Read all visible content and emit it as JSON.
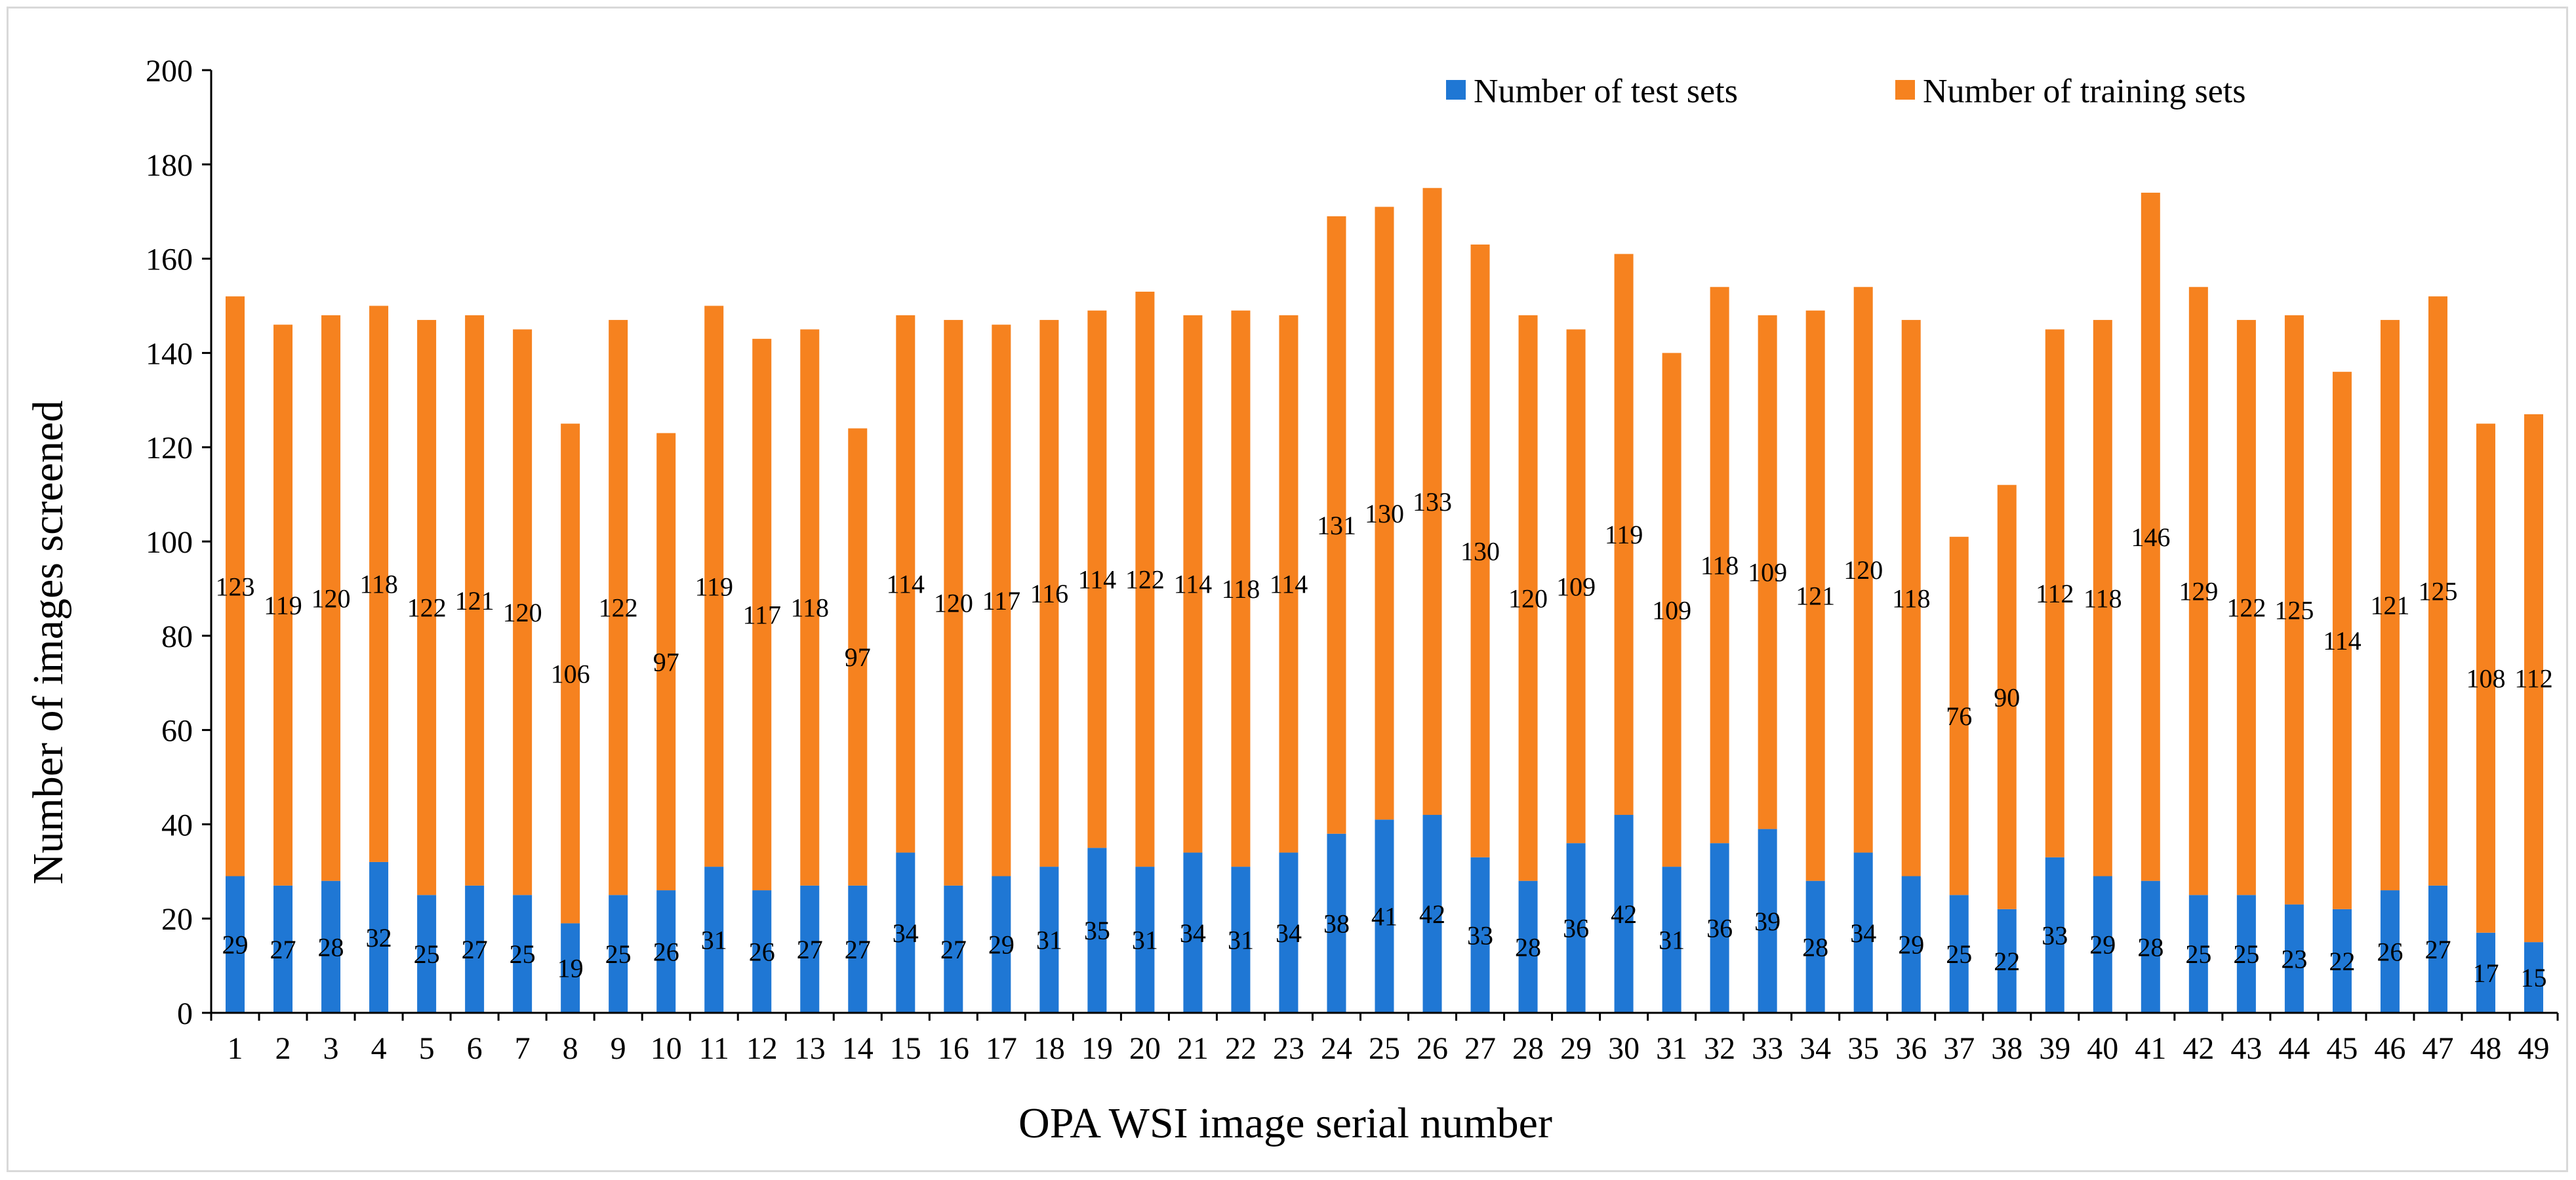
{
  "chart_data": {
    "type": "bar",
    "stacked": true,
    "title": "",
    "xlabel": "OPA WSI image serial number",
    "ylabel": "Number of images screened",
    "ylim": [
      0,
      200
    ],
    "yticks": [
      0,
      20,
      40,
      60,
      80,
      100,
      120,
      140,
      160,
      180,
      200
    ],
    "grid": false,
    "legend_position": "top-right",
    "categories": [
      "1",
      "2",
      "3",
      "4",
      "5",
      "6",
      "7",
      "8",
      "9",
      "10",
      "11",
      "12",
      "13",
      "14",
      "15",
      "16",
      "17",
      "18",
      "19",
      "20",
      "21",
      "22",
      "23",
      "24",
      "25",
      "26",
      "27",
      "28",
      "29",
      "30",
      "31",
      "32",
      "33",
      "34",
      "35",
      "36",
      "37",
      "38",
      "39",
      "40",
      "41",
      "42",
      "43",
      "44",
      "45",
      "46",
      "47",
      "48",
      "49"
    ],
    "series": [
      {
        "name": "Number of test sets",
        "color": "#1f77d4",
        "values": [
          29,
          27,
          28,
          32,
          25,
          27,
          25,
          19,
          25,
          26,
          31,
          26,
          27,
          27,
          34,
          27,
          29,
          31,
          35,
          31,
          34,
          31,
          34,
          38,
          41,
          42,
          33,
          28,
          36,
          42,
          31,
          36,
          39,
          28,
          34,
          29,
          25,
          22,
          33,
          29,
          28,
          25,
          25,
          23,
          22,
          26,
          27,
          17,
          15
        ]
      },
      {
        "name": "Number of training sets",
        "color": "#f6821f",
        "values": [
          123,
          119,
          120,
          118,
          122,
          121,
          120,
          106,
          122,
          97,
          119,
          117,
          118,
          97,
          114,
          120,
          117,
          116,
          114,
          122,
          114,
          118,
          114,
          131,
          130,
          133,
          130,
          120,
          109,
          119,
          109,
          118,
          109,
          121,
          120,
          118,
          76,
          90,
          112,
          118,
          146,
          129,
          122,
          125,
          114,
          121,
          125,
          108,
          112
        ]
      }
    ]
  }
}
